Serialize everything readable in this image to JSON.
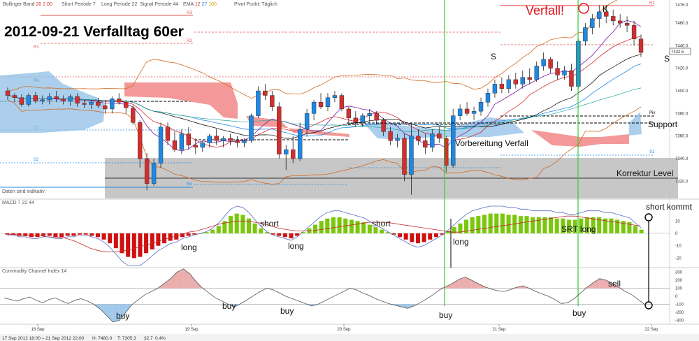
{
  "header": {
    "bollinger": "Bollinger Band",
    "bollinger_params": "20  2.00",
    "short_period": "Short Periode  7",
    "long_period": "Long Periode  22",
    "signal_period": "Signal Periode  44",
    "ema": "EMA",
    "ema_vals": [
      "12",
      "27",
      "100"
    ],
    "pivot": "Pivot Punkt: Täglich"
  },
  "title": "2012-09-21 Verfalltag 60er",
  "verfall_label": "Verfall!",
  "k_label": "K",
  "s_labels": [
    "S",
    "S"
  ],
  "annotations": {
    "support": "Support",
    "vorbereitung": "Vorbereitung Verfall",
    "korrektur": "Korrektur Level",
    "short_kommt": "short kommt",
    "srt_long": "SRT long",
    "daten": "Daten sind indikativ"
  },
  "macd_header": "MACD  7  22  44",
  "cci_header": "Commodity Channel Index  14",
  "macd_labels": [
    "long",
    "short",
    "long",
    "short",
    "long"
  ],
  "cci_labels": [
    "buy",
    "buy",
    "buy",
    "buy",
    "buy",
    "sell"
  ],
  "pivot_labels": [
    "R3",
    "R2",
    "R1",
    "Piv",
    "S1",
    "S2",
    "S3"
  ],
  "status_bar": {
    "left": "17 Sep 2012 18:00 – 21 Sep 2012 22:00",
    "h": "H: 7480.0",
    "t": "T: 7305.3",
    "chg": "32.7",
    "pct": "0.4%"
  },
  "current_price": "7432.5",
  "colors": {
    "bull": "#1e88e5",
    "bear": "#d32f2f",
    "macd_pos": "#7ac70c",
    "macd_neg": "#d01010",
    "cloud_blue": "#8fbfe6",
    "cloud_red": "#f08080",
    "korrektur": "#bdbdbd",
    "verfall": "#e0141e",
    "green_line": "#33cc33"
  },
  "chart_data": [
    {
      "type": "candlestick",
      "x_labels": [
        "18 Sep",
        "19 Sep",
        "20 Sep",
        "21 Sep",
        "22 Sep"
      ],
      "y_ticks": [
        7320,
        7340,
        7360,
        7380,
        7400,
        7420,
        7440,
        7460,
        7476
      ],
      "ylim": [
        7306,
        7478
      ],
      "candles": [
        [
          7400,
          7403,
          7392,
          7396
        ],
        [
          7396,
          7398,
          7390,
          7394
        ],
        [
          7394,
          7397,
          7386,
          7388
        ],
        [
          7388,
          7398,
          7386,
          7396
        ],
        [
          7396,
          7399,
          7389,
          7391
        ],
        [
          7391,
          7396,
          7388,
          7392
        ],
        [
          7392,
          7398,
          7388,
          7395
        ],
        [
          7395,
          7400,
          7390,
          7393
        ],
        [
          7393,
          7396,
          7388,
          7391
        ],
        [
          7391,
          7397,
          7387,
          7395
        ],
        [
          7395,
          7398,
          7386,
          7389
        ],
        [
          7389,
          7392,
          7385,
          7388
        ],
        [
          7388,
          7392,
          7384,
          7390
        ],
        [
          7390,
          7394,
          7385,
          7387
        ],
        [
          7387,
          7392,
          7380,
          7384
        ],
        [
          7384,
          7395,
          7380,
          7393
        ],
        [
          7393,
          7398,
          7388,
          7390
        ],
        [
          7390,
          7392,
          7380,
          7385
        ],
        [
          7385,
          7387,
          7370,
          7372
        ],
        [
          7372,
          7374,
          7332,
          7340
        ],
        [
          7340,
          7345,
          7312,
          7318
        ],
        [
          7318,
          7340,
          7316,
          7336
        ],
        [
          7336,
          7372,
          7332,
          7368
        ],
        [
          7368,
          7372,
          7352,
          7356
        ],
        [
          7356,
          7364,
          7346,
          7348
        ],
        [
          7348,
          7366,
          7344,
          7362
        ],
        [
          7362,
          7368,
          7348,
          7352
        ],
        [
          7352,
          7358,
          7344,
          7350
        ],
        [
          7350,
          7356,
          7346,
          7354
        ],
        [
          7354,
          7362,
          7350,
          7360
        ],
        [
          7360,
          7366,
          7352,
          7356
        ],
        [
          7356,
          7360,
          7350,
          7358
        ],
        [
          7358,
          7362,
          7352,
          7356
        ],
        [
          7356,
          7360,
          7350,
          7354
        ],
        [
          7354,
          7358,
          7350,
          7356
        ],
        [
          7356,
          7380,
          7354,
          7378
        ],
        [
          7378,
          7404,
          7376,
          7400
        ],
        [
          7400,
          7406,
          7392,
          7396
        ],
        [
          7396,
          7400,
          7382,
          7386
        ],
        [
          7386,
          7390,
          7340,
          7344
        ],
        [
          7344,
          7352,
          7330,
          7348
        ],
        [
          7348,
          7360,
          7336,
          7340
        ],
        [
          7340,
          7372,
          7338,
          7366
        ],
        [
          7366,
          7384,
          7360,
          7380
        ],
        [
          7380,
          7392,
          7374,
          7390
        ],
        [
          7390,
          7398,
          7384,
          7386
        ],
        [
          7386,
          7398,
          7382,
          7394
        ],
        [
          7394,
          7400,
          7390,
          7396
        ],
        [
          7396,
          7398,
          7382,
          7384
        ],
        [
          7384,
          7386,
          7372,
          7376
        ],
        [
          7376,
          7382,
          7368,
          7372
        ],
        [
          7372,
          7380,
          7368,
          7378
        ],
        [
          7378,
          7384,
          7372,
          7380
        ],
        [
          7380,
          7382,
          7370,
          7374
        ],
        [
          7374,
          7376,
          7360,
          7364
        ],
        [
          7364,
          7368,
          7352,
          7356
        ],
        [
          7356,
          7362,
          7350,
          7358
        ],
        [
          7358,
          7362,
          7320,
          7326
        ],
        [
          7326,
          7372,
          7308,
          7360
        ],
        [
          7360,
          7366,
          7352,
          7356
        ],
        [
          7356,
          7362,
          7344,
          7350
        ],
        [
          7350,
          7366,
          7346,
          7362
        ],
        [
          7362,
          7368,
          7354,
          7358
        ],
        [
          7358,
          7360,
          7328,
          7334
        ],
        [
          7334,
          7384,
          7332,
          7378
        ],
        [
          7378,
          7388,
          7374,
          7384
        ],
        [
          7384,
          7390,
          7378,
          7380
        ],
        [
          7380,
          7386,
          7374,
          7382
        ],
        [
          7382,
          7394,
          7378,
          7390
        ],
        [
          7390,
          7402,
          7386,
          7398
        ],
        [
          7398,
          7410,
          7394,
          7406
        ],
        [
          7406,
          7412,
          7398,
          7402
        ],
        [
          7402,
          7414,
          7398,
          7410
        ],
        [
          7410,
          7416,
          7402,
          7406
        ],
        [
          7406,
          7418,
          7402,
          7412
        ],
        [
          7412,
          7420,
          7406,
          7410
        ],
        [
          7410,
          7426,
          7408,
          7422
        ],
        [
          7422,
          7434,
          7418,
          7428
        ],
        [
          7428,
          7430,
          7416,
          7420
        ],
        [
          7420,
          7426,
          7410,
          7414
        ],
        [
          7414,
          7422,
          7410,
          7418
        ],
        [
          7418,
          7424,
          7400,
          7404
        ],
        [
          7404,
          7446,
          7402,
          7444
        ],
        [
          7444,
          7460,
          7440,
          7456
        ],
        [
          7456,
          7468,
          7450,
          7464
        ],
        [
          7464,
          7476,
          7456,
          7470
        ],
        [
          7470,
          7476,
          7460,
          7466
        ],
        [
          7466,
          7472,
          7458,
          7462
        ],
        [
          7462,
          7468,
          7456,
          7460
        ],
        [
          7460,
          7466,
          7452,
          7458
        ],
        [
          7458,
          7462,
          7440,
          7446
        ],
        [
          7446,
          7450,
          7430,
          7434
        ]
      ]
    },
    {
      "type": "bar",
      "name": "MACD",
      "y_ticks": [
        10,
        0,
        -10,
        -20
      ],
      "ylim": [
        -26,
        22
      ],
      "values": [
        -1,
        -1,
        -2,
        -2,
        -3,
        -3,
        -2,
        -2,
        -3,
        -3,
        -2,
        -2,
        -1,
        -1,
        -2,
        -3,
        -5,
        -8,
        -12,
        -16,
        -19,
        -20,
        -19,
        -16,
        -13,
        -10,
        -8,
        -6,
        -5,
        -3,
        -2,
        -1,
        0,
        1,
        3,
        6,
        10,
        14,
        16,
        15,
        12,
        8,
        4,
        1,
        -1,
        -2,
        -3,
        -4,
        -2,
        1,
        4,
        7,
        10,
        12,
        13,
        13,
        12,
        11,
        10,
        9,
        7,
        5,
        3,
        1,
        -1,
        -3,
        -5,
        -7,
        -8,
        -7,
        -5,
        -3,
        -1,
        2,
        5,
        8,
        11,
        13,
        14,
        15,
        16,
        16,
        16,
        15,
        15,
        14,
        14,
        13,
        13,
        13,
        13,
        12,
        12,
        11,
        11,
        12,
        13,
        13,
        13,
        12,
        12,
        11,
        10,
        9,
        6,
        3
      ],
      "signal": [
        -1,
        -1,
        -2,
        -2,
        -2,
        -3,
        -3,
        -4,
        -6,
        -9,
        -12,
        -14,
        -15,
        -15,
        -14,
        -13,
        -11,
        -9,
        -7,
        -5,
        -3,
        -1,
        1,
        2,
        4,
        6,
        8,
        9,
        10,
        10,
        9,
        8,
        6,
        4,
        3,
        2,
        2,
        2,
        3,
        4,
        5,
        6,
        7,
        8,
        9,
        9,
        9,
        8,
        7,
        6,
        5,
        4,
        3,
        2,
        1,
        1,
        2,
        3,
        4,
        5,
        6,
        7,
        8,
        9,
        10,
        11,
        12,
        13,
        14,
        14,
        13,
        12,
        11,
        10,
        9,
        8,
        7,
        6
      ]
    },
    {
      "type": "area",
      "name": "Commodity Channel Index",
      "y_ticks": [
        300,
        200,
        100,
        0,
        -100,
        -200,
        -300
      ],
      "ylim": [
        -330,
        330
      ],
      "values": [
        -20,
        -40,
        -60,
        -30,
        -10,
        -50,
        -80,
        -40,
        -20,
        -60,
        -90,
        -50,
        -30,
        -60,
        -100,
        -160,
        -240,
        -320,
        -300,
        -200,
        -100,
        -40,
        20,
        60,
        100,
        160,
        220,
        300,
        340,
        280,
        180,
        100,
        40,
        -20,
        -60,
        -100,
        -130,
        -90,
        -40,
        10,
        60,
        100,
        80,
        40,
        0,
        -30,
        -60,
        -90,
        -120,
        -100,
        -60,
        -20,
        20,
        60,
        100,
        80,
        40,
        10,
        -30,
        -60,
        -90,
        -110,
        -130,
        -150,
        -120,
        -80,
        -30,
        20,
        80,
        120,
        160,
        210,
        240,
        200,
        160,
        120,
        90,
        70,
        60,
        80,
        110,
        130,
        100,
        60,
        30,
        0,
        -40,
        -90,
        -80,
        -30,
        40,
        110,
        170,
        220,
        200,
        160,
        110,
        60,
        20,
        -40,
        -100
      ]
    }
  ]
}
